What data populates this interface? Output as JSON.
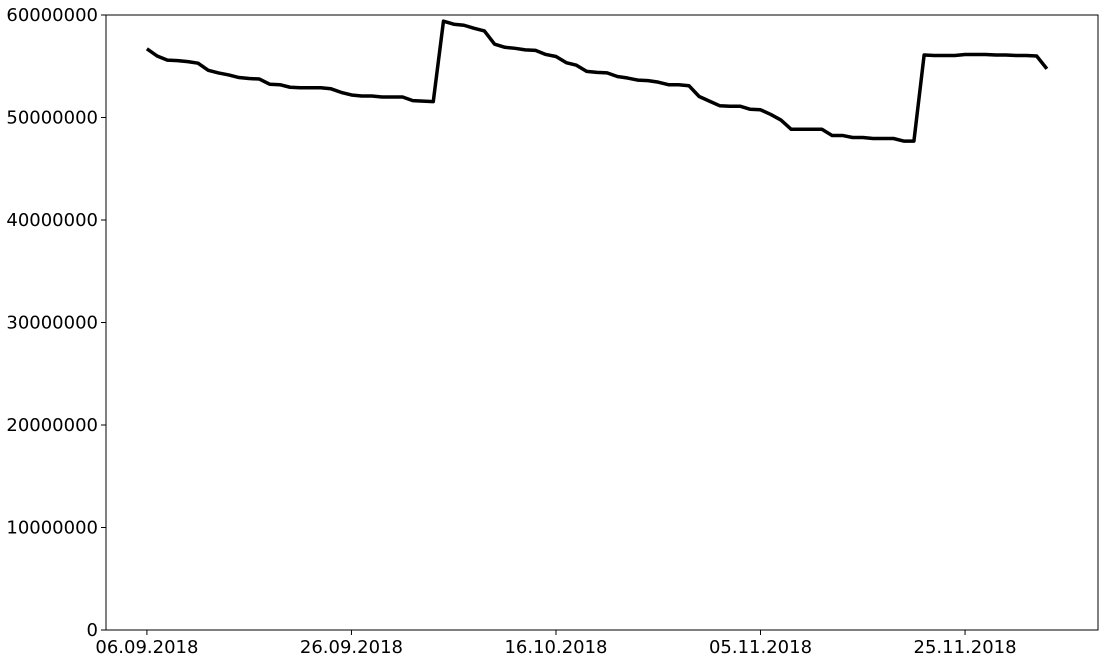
{
  "chart_data": {
    "type": "line",
    "title": "",
    "xlabel": "",
    "ylabel": "",
    "grid": false,
    "legend": "none",
    "ylim": [
      0,
      60000000
    ],
    "xlim": [
      "2018-09-02",
      "2018-12-08"
    ],
    "x_ticks": [
      {
        "date": "2018-09-06",
        "label": "06.09.2018"
      },
      {
        "date": "2018-09-26",
        "label": "26.09.2018"
      },
      {
        "date": "2018-10-16",
        "label": "16.10.2018"
      },
      {
        "date": "2018-11-05",
        "label": "05.11.2018"
      },
      {
        "date": "2018-11-25",
        "label": "25.11.2018"
      }
    ],
    "y_ticks": [
      {
        "value": 0,
        "label": "0"
      },
      {
        "value": 10000000,
        "label": "10000000"
      },
      {
        "value": 20000000,
        "label": "20000000"
      },
      {
        "value": 30000000,
        "label": "30000000"
      },
      {
        "value": 40000000,
        "label": "40000000"
      },
      {
        "value": 50000000,
        "label": "50000000"
      },
      {
        "value": 60000000,
        "label": "60000000"
      }
    ],
    "series": [
      {
        "color": "#000000",
        "points": [
          [
            "2018-09-06",
            56700000
          ],
          [
            "2018-09-07",
            56000000
          ],
          [
            "2018-09-08",
            55600000
          ],
          [
            "2018-09-09",
            55550000
          ],
          [
            "2018-09-10",
            55450000
          ],
          [
            "2018-09-11",
            55300000
          ],
          [
            "2018-09-12",
            54600000
          ],
          [
            "2018-09-13",
            54350000
          ],
          [
            "2018-09-14",
            54150000
          ],
          [
            "2018-09-15",
            53900000
          ],
          [
            "2018-09-16",
            53800000
          ],
          [
            "2018-09-17",
            53750000
          ],
          [
            "2018-09-18",
            53250000
          ],
          [
            "2018-09-19",
            53200000
          ],
          [
            "2018-09-20",
            52950000
          ],
          [
            "2018-09-21",
            52900000
          ],
          [
            "2018-09-22",
            52900000
          ],
          [
            "2018-09-23",
            52900000
          ],
          [
            "2018-09-24",
            52800000
          ],
          [
            "2018-09-25",
            52450000
          ],
          [
            "2018-09-26",
            52200000
          ],
          [
            "2018-09-27",
            52100000
          ],
          [
            "2018-09-28",
            52100000
          ],
          [
            "2018-09-29",
            52000000
          ],
          [
            "2018-09-30",
            52000000
          ],
          [
            "2018-10-01",
            52000000
          ],
          [
            "2018-10-02",
            51650000
          ],
          [
            "2018-10-03",
            51600000
          ],
          [
            "2018-10-04",
            51550000
          ],
          [
            "2018-10-05",
            59400000
          ],
          [
            "2018-10-06",
            59100000
          ],
          [
            "2018-10-07",
            59000000
          ],
          [
            "2018-10-08",
            58700000
          ],
          [
            "2018-10-09",
            58450000
          ],
          [
            "2018-10-10",
            57150000
          ],
          [
            "2018-10-11",
            56850000
          ],
          [
            "2018-10-12",
            56750000
          ],
          [
            "2018-10-13",
            56600000
          ],
          [
            "2018-10-14",
            56550000
          ],
          [
            "2018-10-15",
            56150000
          ],
          [
            "2018-10-16",
            55950000
          ],
          [
            "2018-10-17",
            55350000
          ],
          [
            "2018-10-18",
            55100000
          ],
          [
            "2018-10-19",
            54500000
          ],
          [
            "2018-10-20",
            54400000
          ],
          [
            "2018-10-21",
            54350000
          ],
          [
            "2018-10-22",
            54000000
          ],
          [
            "2018-10-23",
            53850000
          ],
          [
            "2018-10-24",
            53650000
          ],
          [
            "2018-10-25",
            53600000
          ],
          [
            "2018-10-26",
            53450000
          ],
          [
            "2018-10-27",
            53200000
          ],
          [
            "2018-10-28",
            53200000
          ],
          [
            "2018-10-29",
            53100000
          ],
          [
            "2018-10-30",
            52050000
          ],
          [
            "2018-10-31",
            51600000
          ],
          [
            "2018-11-01",
            51150000
          ],
          [
            "2018-11-02",
            51100000
          ],
          [
            "2018-11-03",
            51100000
          ],
          [
            "2018-11-04",
            50800000
          ],
          [
            "2018-11-05",
            50750000
          ],
          [
            "2018-11-06",
            50300000
          ],
          [
            "2018-11-07",
            49750000
          ],
          [
            "2018-11-08",
            48850000
          ],
          [
            "2018-11-09",
            48850000
          ],
          [
            "2018-11-10",
            48850000
          ],
          [
            "2018-11-11",
            48850000
          ],
          [
            "2018-11-12",
            48250000
          ],
          [
            "2018-11-13",
            48250000
          ],
          [
            "2018-11-14",
            48050000
          ],
          [
            "2018-11-15",
            48050000
          ],
          [
            "2018-11-16",
            47950000
          ],
          [
            "2018-11-17",
            47950000
          ],
          [
            "2018-11-18",
            47950000
          ],
          [
            "2018-11-19",
            47700000
          ],
          [
            "2018-11-20",
            47700000
          ],
          [
            "2018-11-21",
            56100000
          ],
          [
            "2018-11-22",
            56050000
          ],
          [
            "2018-11-23",
            56050000
          ],
          [
            "2018-11-24",
            56050000
          ],
          [
            "2018-11-25",
            56150000
          ],
          [
            "2018-11-26",
            56150000
          ],
          [
            "2018-11-27",
            56150000
          ],
          [
            "2018-11-28",
            56100000
          ],
          [
            "2018-11-29",
            56100000
          ],
          [
            "2018-11-30",
            56050000
          ],
          [
            "2018-12-01",
            56050000
          ],
          [
            "2018-12-02",
            56000000
          ],
          [
            "2018-12-03",
            54750000
          ]
        ]
      }
    ]
  }
}
